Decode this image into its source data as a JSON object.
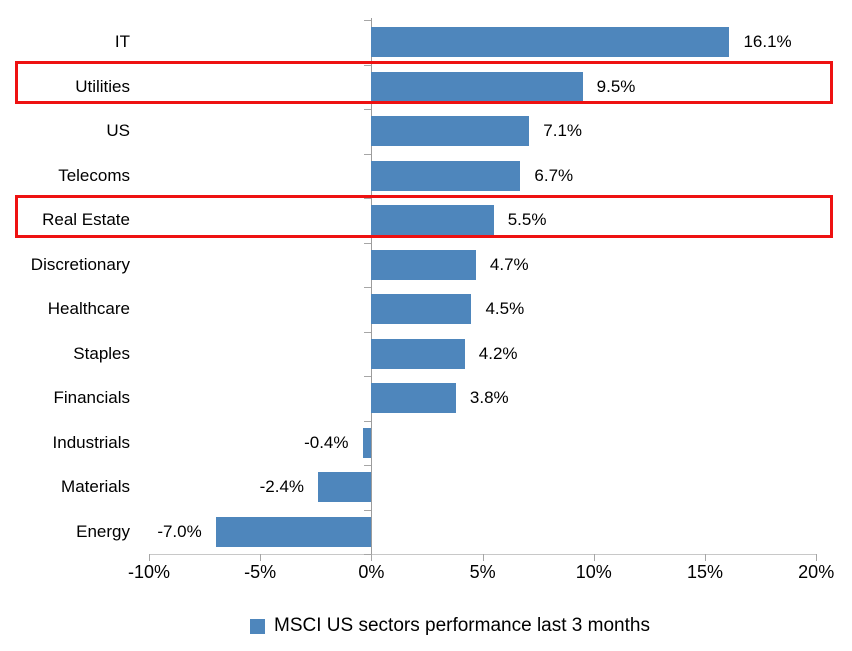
{
  "chart_data": {
    "type": "bar",
    "orientation": "horizontal",
    "title": "",
    "legend_label": "MSCI US sectors performance last 3 months",
    "legend_position": "bottom",
    "grid": false,
    "categories": [
      "IT",
      "Utilities",
      "US",
      "Telecoms",
      "Real Estate",
      "Discretionary",
      "Healthcare",
      "Staples",
      "Financials",
      "Industrials",
      "Materials",
      "Energy"
    ],
    "values": [
      16.1,
      9.5,
      7.1,
      6.7,
      5.5,
      4.7,
      4.5,
      4.2,
      3.8,
      -0.4,
      -2.4,
      -7.0
    ],
    "value_labels": [
      "16.1%",
      "9.5%",
      "7.1%",
      "6.7%",
      "5.5%",
      "4.7%",
      "4.5%",
      "4.2%",
      "3.8%",
      "-0.4%",
      "-2.4%",
      "-7.0%"
    ],
    "x_tick_labels": [
      "-10%",
      "-5%",
      "0%",
      "5%",
      "10%",
      "15%",
      "20%"
    ],
    "x_tick_values": [
      -10,
      -5,
      0,
      5,
      10,
      15,
      20
    ],
    "xlim": [
      -10,
      20
    ],
    "highlighted_categories": [
      "Utilities",
      "Real Estate"
    ],
    "colors": {
      "bar": "#4E86BC",
      "highlight_border": "#EE1111",
      "axis_line": "#C8C8C8",
      "axis_tick": "#A6A6A6",
      "zero_axis": "#9C9C9C",
      "text": "#000000"
    }
  }
}
